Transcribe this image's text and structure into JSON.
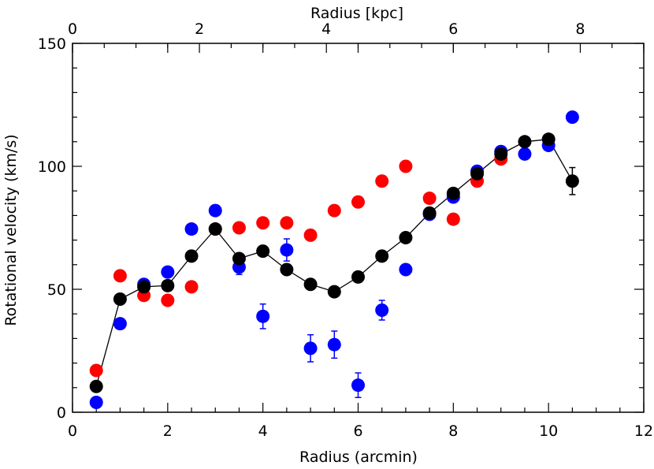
{
  "chart_data": {
    "type": "scatter",
    "xlabel": "Radius (arcmin)",
    "x2label": "Radius [kpc]",
    "ylabel": "Rotational velocity (km/s)",
    "xlim": [
      0,
      12
    ],
    "ylim": [
      0,
      150
    ],
    "x2lim": [
      0,
      9
    ],
    "x_ticks": [
      0,
      2,
      4,
      6,
      8,
      10,
      12
    ],
    "x2_ticks": [
      0,
      2,
      4,
      6,
      8
    ],
    "y_ticks": [
      0,
      50,
      100,
      150
    ],
    "x_tick_labels": [
      "0",
      "2",
      "4",
      "6",
      "8",
      "10",
      "12"
    ],
    "x2_tick_labels": [
      "0",
      "2",
      "4",
      "6",
      "8"
    ],
    "y_tick_labels": [
      "0",
      "50",
      "100",
      "150"
    ],
    "series": [
      {
        "name": "red",
        "color": "#ff0000",
        "connected": false,
        "points": [
          {
            "x": 0.5,
            "y": 17,
            "err": 0
          },
          {
            "x": 1.0,
            "y": 55.5,
            "err": 0
          },
          {
            "x": 1.5,
            "y": 47.5,
            "err": 0
          },
          {
            "x": 2.0,
            "y": 45.5,
            "err": 0
          },
          {
            "x": 2.5,
            "y": 51,
            "err": 0
          },
          {
            "x": 3.0,
            "y": 74.5,
            "err": 0
          },
          {
            "x": 3.5,
            "y": 75,
            "err": 0
          },
          {
            "x": 4.0,
            "y": 77,
            "err": 0
          },
          {
            "x": 4.5,
            "y": 77,
            "err": 0
          },
          {
            "x": 5.0,
            "y": 72,
            "err": 0
          },
          {
            "x": 5.5,
            "y": 82,
            "err": 0
          },
          {
            "x": 6.0,
            "y": 85.5,
            "err": 0
          },
          {
            "x": 6.5,
            "y": 94,
            "err": 0
          },
          {
            "x": 7.0,
            "y": 100,
            "err": 0
          },
          {
            "x": 7.5,
            "y": 87,
            "err": 0
          },
          {
            "x": 8.0,
            "y": 78.5,
            "err": 0
          },
          {
            "x": 8.5,
            "y": 94,
            "err": 0
          },
          {
            "x": 9.0,
            "y": 103,
            "err": 0
          }
        ]
      },
      {
        "name": "blue",
        "color": "#0000ff",
        "connected": false,
        "points": [
          {
            "x": 0.5,
            "y": 4,
            "err": 0
          },
          {
            "x": 1.0,
            "y": 36,
            "err": 0
          },
          {
            "x": 1.5,
            "y": 52,
            "err": 0
          },
          {
            "x": 2.0,
            "y": 57,
            "err": 0
          },
          {
            "x": 2.5,
            "y": 74.5,
            "err": 0
          },
          {
            "x": 3.0,
            "y": 82,
            "err": 0
          },
          {
            "x": 3.5,
            "y": 59,
            "err": 3
          },
          {
            "x": 4.0,
            "y": 39,
            "err": 5
          },
          {
            "x": 4.5,
            "y": 66,
            "err": 4.5
          },
          {
            "x": 5.0,
            "y": 26,
            "err": 5.5
          },
          {
            "x": 5.5,
            "y": 27.5,
            "err": 5.5
          },
          {
            "x": 6.0,
            "y": 11,
            "err": 5
          },
          {
            "x": 6.5,
            "y": 41.5,
            "err": 4
          },
          {
            "x": 7.0,
            "y": 58,
            "err": 0
          },
          {
            "x": 7.5,
            "y": 80.5,
            "err": 0
          },
          {
            "x": 8.0,
            "y": 87.5,
            "err": 0
          },
          {
            "x": 8.5,
            "y": 98,
            "err": 0
          },
          {
            "x": 9.0,
            "y": 106,
            "err": 0
          },
          {
            "x": 9.5,
            "y": 105,
            "err": 0
          },
          {
            "x": 10.0,
            "y": 108.5,
            "err": 0
          },
          {
            "x": 10.5,
            "y": 120,
            "err": 0
          }
        ]
      },
      {
        "name": "black",
        "color": "#000000",
        "connected": true,
        "points": [
          {
            "x": 0.5,
            "y": 10.5,
            "err": 2
          },
          {
            "x": 1.0,
            "y": 46,
            "err": 0
          },
          {
            "x": 1.5,
            "y": 51,
            "err": 0
          },
          {
            "x": 2.0,
            "y": 51.5,
            "err": 0
          },
          {
            "x": 2.5,
            "y": 63.5,
            "err": 0
          },
          {
            "x": 3.0,
            "y": 74.5,
            "err": 0
          },
          {
            "x": 3.5,
            "y": 62.5,
            "err": 0
          },
          {
            "x": 4.0,
            "y": 65.5,
            "err": 0
          },
          {
            "x": 4.5,
            "y": 58,
            "err": 0
          },
          {
            "x": 5.0,
            "y": 52,
            "err": 0
          },
          {
            "x": 5.5,
            "y": 49,
            "err": 0
          },
          {
            "x": 6.0,
            "y": 55,
            "err": 0
          },
          {
            "x": 6.5,
            "y": 63.5,
            "err": 0
          },
          {
            "x": 7.0,
            "y": 71,
            "err": 0
          },
          {
            "x": 7.5,
            "y": 81,
            "err": 0
          },
          {
            "x": 8.0,
            "y": 89,
            "err": 0
          },
          {
            "x": 8.5,
            "y": 97,
            "err": 0
          },
          {
            "x": 9.0,
            "y": 105,
            "err": 0
          },
          {
            "x": 9.5,
            "y": 110,
            "err": 0
          },
          {
            "x": 10.0,
            "y": 111,
            "err": 0
          },
          {
            "x": 10.5,
            "y": 94,
            "err": 5.5
          }
        ]
      }
    ]
  }
}
